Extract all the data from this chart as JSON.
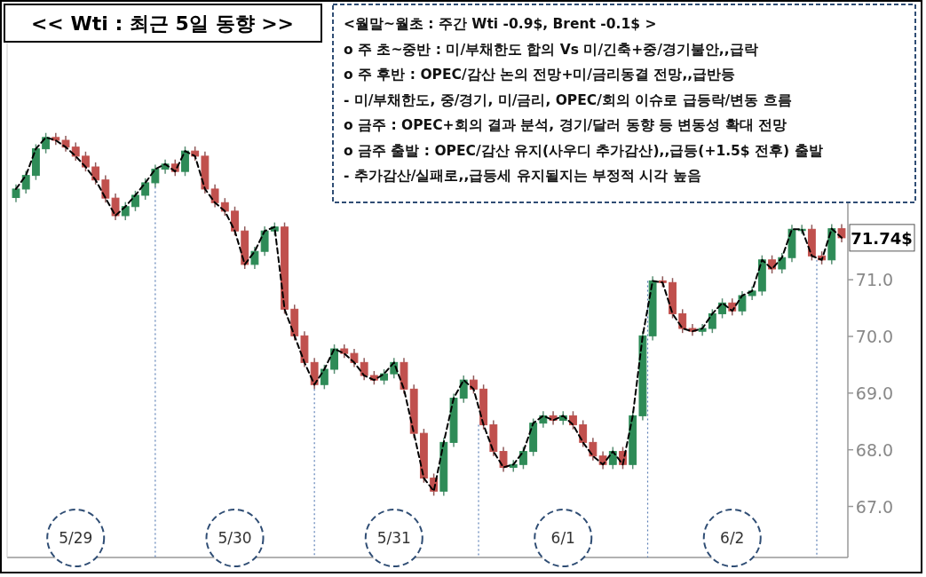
{
  "chart_data": {
    "type": "candlestick",
    "title": "<< Wti : 최근 5일 동향 >>",
    "categories": [
      null,
      null,
      null,
      null,
      null,
      null,
      "5/29",
      null,
      null,
      null,
      null,
      null,
      null,
      null,
      null,
      null,
      null,
      null,
      null,
      null,
      null,
      null,
      "5/30",
      null,
      null,
      null,
      null,
      null,
      null,
      null,
      null,
      null,
      null,
      null,
      null,
      null,
      null,
      null,
      "5/31",
      null,
      null,
      null,
      null,
      null,
      null,
      null,
      null,
      null,
      null,
      null,
      null,
      null,
      null,
      null,
      null,
      "6/1",
      null,
      null,
      null,
      null,
      null,
      null,
      null,
      null,
      null,
      null,
      null,
      null,
      null,
      null,
      null,
      null,
      "6/2",
      null,
      null,
      null,
      null,
      null,
      null,
      null,
      null,
      null,
      null,
      null
    ],
    "ohlc": [
      [
        72.45,
        72.68,
        72.37,
        72.6
      ],
      [
        72.6,
        72.92,
        72.52,
        72.84
      ],
      [
        72.84,
        73.39,
        72.76,
        73.31
      ],
      [
        73.31,
        73.59,
        73.23,
        73.51
      ],
      [
        73.51,
        73.59,
        73.38,
        73.46
      ],
      [
        73.46,
        73.54,
        73.26,
        73.34
      ],
      [
        73.34,
        73.42,
        73.1,
        73.18
      ],
      [
        73.18,
        73.26,
        72.91,
        72.99
      ],
      [
        72.99,
        73.07,
        72.68,
        72.76
      ],
      [
        72.76,
        72.84,
        72.36,
        72.44
      ],
      [
        72.44,
        72.52,
        72.05,
        72.13
      ],
      [
        72.13,
        72.37,
        72.05,
        72.29
      ],
      [
        72.29,
        72.57,
        72.21,
        72.49
      ],
      [
        72.49,
        72.79,
        72.41,
        72.71
      ],
      [
        72.71,
        73.03,
        72.63,
        72.95
      ],
      [
        72.95,
        73.12,
        72.87,
        73.04
      ],
      [
        73.04,
        73.12,
        72.83,
        72.91
      ],
      [
        72.91,
        73.35,
        72.83,
        73.27
      ],
      [
        73.27,
        73.35,
        73.1,
        73.18
      ],
      [
        73.18,
        73.26,
        72.52,
        72.6
      ],
      [
        72.6,
        72.68,
        72.28,
        72.36
      ],
      [
        72.36,
        72.44,
        72.13,
        72.21
      ],
      [
        72.21,
        72.29,
        71.78,
        71.86
      ],
      [
        71.86,
        71.94,
        71.19,
        71.27
      ],
      [
        71.27,
        71.58,
        71.19,
        71.5
      ],
      [
        71.5,
        71.94,
        71.42,
        71.86
      ],
      [
        71.86,
        72.01,
        71.78,
        71.93
      ],
      [
        71.93,
        72.01,
        70.4,
        70.48
      ],
      [
        70.48,
        70.56,
        69.93,
        70.01
      ],
      [
        70.01,
        70.09,
        69.46,
        69.54
      ],
      [
        69.54,
        69.62,
        69.07,
        69.15
      ],
      [
        69.15,
        69.5,
        69.07,
        69.42
      ],
      [
        69.42,
        69.86,
        69.34,
        69.78
      ],
      [
        69.78,
        69.86,
        69.62,
        69.7
      ],
      [
        69.7,
        69.78,
        69.46,
        69.54
      ],
      [
        69.54,
        69.62,
        69.23,
        69.31
      ],
      [
        69.31,
        69.39,
        69.15,
        69.23
      ],
      [
        69.23,
        69.42,
        69.15,
        69.34
      ],
      [
        69.34,
        69.62,
        69.26,
        69.54
      ],
      [
        69.54,
        69.62,
        68.99,
        69.07
      ],
      [
        69.07,
        69.15,
        68.21,
        68.29
      ],
      [
        68.29,
        68.37,
        67.42,
        67.5
      ],
      [
        67.5,
        67.58,
        67.19,
        67.27
      ],
      [
        67.27,
        68.21,
        67.19,
        68.13
      ],
      [
        68.13,
        68.99,
        68.05,
        68.91
      ],
      [
        68.91,
        69.31,
        68.83,
        69.23
      ],
      [
        69.23,
        69.31,
        68.99,
        69.07
      ],
      [
        69.07,
        69.15,
        68.36,
        68.44
      ],
      [
        68.44,
        68.52,
        67.89,
        67.97
      ],
      [
        67.97,
        68.05,
        67.61,
        67.69
      ],
      [
        67.69,
        67.82,
        67.61,
        67.74
      ],
      [
        67.74,
        68.05,
        67.66,
        67.97
      ],
      [
        67.97,
        68.55,
        67.89,
        68.47
      ],
      [
        68.47,
        68.68,
        68.39,
        68.6
      ],
      [
        68.6,
        68.68,
        68.44,
        68.52
      ],
      [
        68.52,
        68.68,
        68.44,
        68.6
      ],
      [
        68.6,
        68.68,
        68.36,
        68.44
      ],
      [
        68.44,
        68.52,
        68.05,
        68.13
      ],
      [
        68.13,
        68.21,
        67.81,
        67.89
      ],
      [
        67.89,
        67.97,
        67.66,
        67.74
      ],
      [
        67.74,
        68.05,
        67.66,
        67.97
      ],
      [
        67.97,
        68.05,
        67.66,
        67.74
      ],
      [
        67.74,
        68.68,
        67.66,
        68.6
      ],
      [
        68.6,
        70.09,
        68.52,
        70.01
      ],
      [
        70.01,
        71.06,
        69.93,
        70.98
      ],
      [
        70.98,
        71.06,
        70.87,
        70.95
      ],
      [
        70.95,
        71.03,
        70.32,
        70.4
      ],
      [
        70.4,
        70.48,
        70.06,
        70.14
      ],
      [
        70.14,
        70.22,
        70.01,
        70.09
      ],
      [
        70.09,
        70.22,
        70.01,
        70.14
      ],
      [
        70.14,
        70.48,
        70.06,
        70.4
      ],
      [
        70.4,
        70.67,
        70.32,
        70.59
      ],
      [
        70.59,
        70.67,
        70.37,
        70.45
      ],
      [
        70.45,
        70.8,
        70.37,
        70.72
      ],
      [
        70.72,
        70.88,
        70.64,
        70.8
      ],
      [
        70.8,
        71.43,
        70.72,
        71.35
      ],
      [
        71.35,
        71.43,
        71.11,
        71.19
      ],
      [
        71.19,
        71.47,
        71.11,
        71.39
      ],
      [
        71.39,
        71.97,
        71.31,
        71.89
      ],
      [
        71.89,
        71.97,
        71.81,
        71.89
      ],
      [
        71.89,
        71.97,
        71.34,
        71.42
      ],
      [
        71.42,
        71.5,
        71.27,
        71.35
      ],
      [
        71.35,
        71.98,
        71.27,
        71.9
      ],
      [
        71.9,
        71.98,
        71.66,
        71.74
      ]
    ],
    "series": [
      {
        "type": "line",
        "color": "#000000",
        "line_style": "dashed",
        "values": [
          72.6,
          72.84,
          73.31,
          73.51,
          73.46,
          73.34,
          73.18,
          72.99,
          72.76,
          72.44,
          72.13,
          72.29,
          72.49,
          72.71,
          72.95,
          73.04,
          72.91,
          73.27,
          73.18,
          72.6,
          72.36,
          72.21,
          71.86,
          71.27,
          71.5,
          71.86,
          71.93,
          70.48,
          70.01,
          69.54,
          69.15,
          69.42,
          69.78,
          69.7,
          69.54,
          69.31,
          69.23,
          69.34,
          69.54,
          69.07,
          68.29,
          67.5,
          67.27,
          68.13,
          68.91,
          69.23,
          69.07,
          68.44,
          67.97,
          67.69,
          67.74,
          67.97,
          68.47,
          68.6,
          68.52,
          68.6,
          68.44,
          68.13,
          67.89,
          67.74,
          67.97,
          67.74,
          68.6,
          70.01,
          70.98,
          70.95,
          70.4,
          70.14,
          70.09,
          70.14,
          70.4,
          70.59,
          70.45,
          70.72,
          70.8,
          71.35,
          71.19,
          71.39,
          71.89,
          71.89,
          71.42,
          71.35,
          71.9,
          71.74
        ]
      }
    ],
    "ylim": [
      66.1,
      75.7
    ],
    "yticks": [
      {
        "value": 67,
        "label": "67.0"
      },
      {
        "value": 68,
        "label": "68.0"
      },
      {
        "value": 69,
        "label": "69.0"
      },
      {
        "value": 70,
        "label": "70.0"
      },
      {
        "value": 71,
        "label": "71.0"
      }
    ],
    "grid": false,
    "annotations": [
      "<월말~월초 : 주간 Wti -0.9$, Brent -0.1$ >",
      "o 주 초~중반 : 미/부채한도 합의 Vs 미/긴축+중/경기불안,,급락",
      "o 주 후반 : OPEC/감산 논의 전망+미/금리동결 전망,,급반등",
      " - 미/부채한도, 중/경기, 미/금리, OPEC/회의 이슈로 급등락/변동 흐름",
      "o 금주 : OPEC+회의 결과 분석, 경기/달러 동향 등 변동성 확대 전망",
      "o 금주 출발 : OPEC/감산 유지(사우디 추가감산),,급등(+1.5$ 전후) 출발",
      " - 추가감산/실패로,,급등세 유지될지는 부정적 시각 높음",
      "71.74$"
    ]
  }
}
